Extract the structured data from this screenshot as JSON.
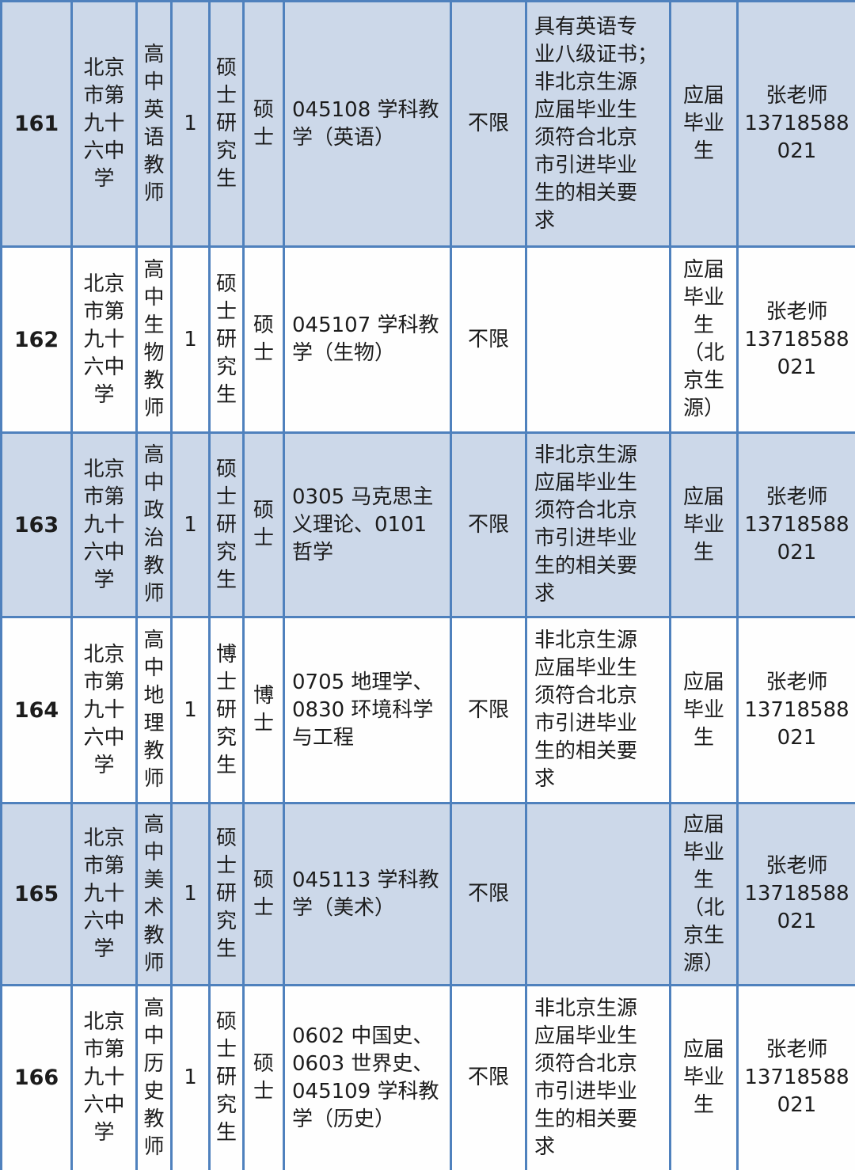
{
  "colors": {
    "border": "#4f81bd",
    "row_shaded_bg": "#ccd8e9",
    "row_plain_bg": "#fefefe",
    "text": "#1c1c1c"
  },
  "table": {
    "rows": [
      {
        "no": "161",
        "school": "北京\n市第\n九十\n六中\n学",
        "position": "高\n中\n英\n语\n教\n师",
        "count": "1",
        "education": "硕\n士\n研\n究\n生",
        "degree": "硕\n士",
        "major": "045108 学科教\n学（英语）",
        "household": "不限",
        "requirements": "具有英语专\n业八级证书；\n非北京生源\n应届毕业生\n须符合北京\n市引进毕业\n生的相关要\n求",
        "graduate_type": "应届\n毕业\n生",
        "contact": "张老师\n13718588\n021"
      },
      {
        "no": "162",
        "school": "北京\n市第\n九十\n六中\n学",
        "position": "高\n中\n生\n物\n教\n师",
        "count": "1",
        "education": "硕\n士\n研\n究\n生",
        "degree": "硕\n士",
        "major": "045107 学科教\n学（生物）",
        "household": "不限",
        "requirements": "",
        "graduate_type": "应届\n毕业\n生\n（北\n京生\n源）",
        "contact": "张老师\n13718588\n021"
      },
      {
        "no": "163",
        "school": "北京\n市第\n九十\n六中\n学",
        "position": "高\n中\n政\n治\n教\n师",
        "count": "1",
        "education": "硕\n士\n研\n究\n生",
        "degree": "硕\n士",
        "major": "0305 马克思主\n义理论、0101\n哲学",
        "household": "不限",
        "requirements": "非北京生源\n应届毕业生\n须符合北京\n市引进毕业\n生的相关要\n求",
        "graduate_type": "应届\n毕业\n生",
        "contact": "张老师\n13718588\n021"
      },
      {
        "no": "164",
        "school": "北京\n市第\n九十\n六中\n学",
        "position": "高\n中\n地\n理\n教\n师",
        "count": "1",
        "education": "博\n士\n研\n究\n生",
        "degree": "博\n士",
        "major": "0705 地理学、\n0830 环境科学\n与工程",
        "household": "不限",
        "requirements": "非北京生源\n应届毕业生\n须符合北京\n市引进毕业\n生的相关要\n求",
        "graduate_type": "应届\n毕业\n生",
        "contact": "张老师\n13718588\n021"
      },
      {
        "no": "165",
        "school": "北京\n市第\n九十\n六中\n学",
        "position": "高\n中\n美\n术\n教\n师",
        "count": "1",
        "education": "硕\n士\n研\n究\n生",
        "degree": "硕\n士",
        "major": "045113 学科教\n学（美术）",
        "household": "不限",
        "requirements": "",
        "graduate_type": "应届\n毕业\n生\n（北\n京生\n源）",
        "contact": "张老师\n13718588\n021"
      },
      {
        "no": "166",
        "school": "北京\n市第\n九十\n六中\n学",
        "position": "高\n中\n历\n史\n教\n师",
        "count": "1",
        "education": "硕\n士\n研\n究\n生",
        "degree": "硕\n士",
        "major": "0602 中国史、\n0603 世界史、\n045109 学科教\n学（历史）",
        "household": "不限",
        "requirements": "非北京生源\n应届毕业生\n须符合北京\n市引进毕业\n生的相关要\n求",
        "graduate_type": "应届\n毕业\n生",
        "contact": "张老师\n13718588\n021"
      }
    ]
  }
}
